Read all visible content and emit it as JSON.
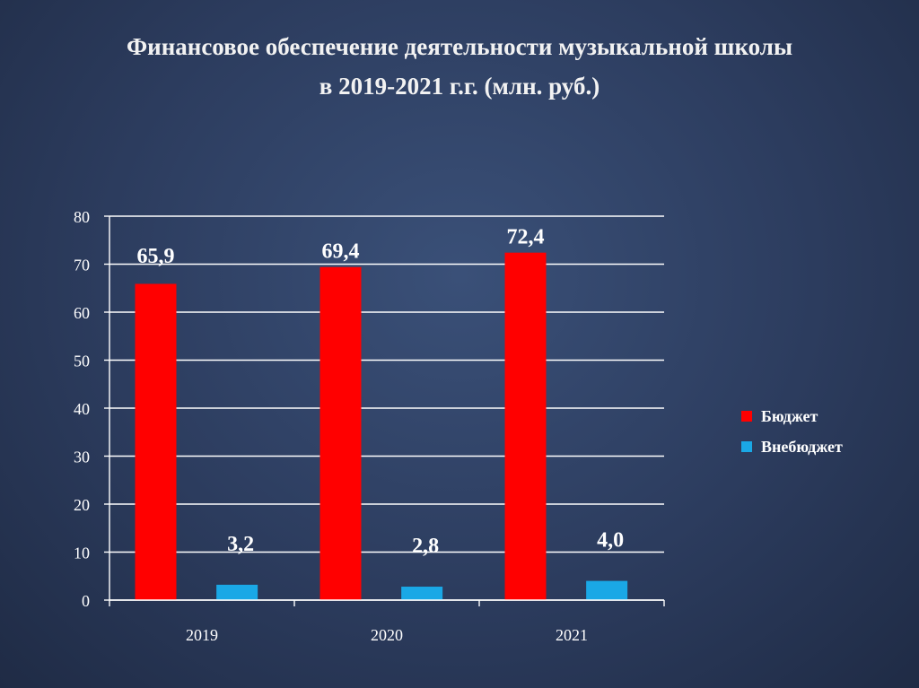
{
  "title": {
    "line1": "Финансовое обеспечение деятельности музыкальной школы",
    "line2": "в 2019-2021 г.г. (млн. руб.)"
  },
  "chart_data": {
    "type": "bar",
    "categories": [
      "2019",
      "2020",
      "2021"
    ],
    "series": [
      {
        "name": "Бюджет",
        "color": "#ff0000",
        "values": [
          65.9,
          69.4,
          72.4
        ],
        "labels": [
          "65,9",
          "69,4",
          "72,4"
        ]
      },
      {
        "name": "Внебюджет",
        "color": "#1aa8e6",
        "values": [
          3.2,
          2.8,
          4.0
        ],
        "labels": [
          "3,2",
          "2,8",
          "4,0"
        ]
      }
    ],
    "ylim": [
      0,
      80
    ],
    "yticks": [
      0,
      10,
      20,
      30,
      40,
      50,
      60,
      70,
      80
    ],
    "grid": true,
    "legend": "right"
  }
}
